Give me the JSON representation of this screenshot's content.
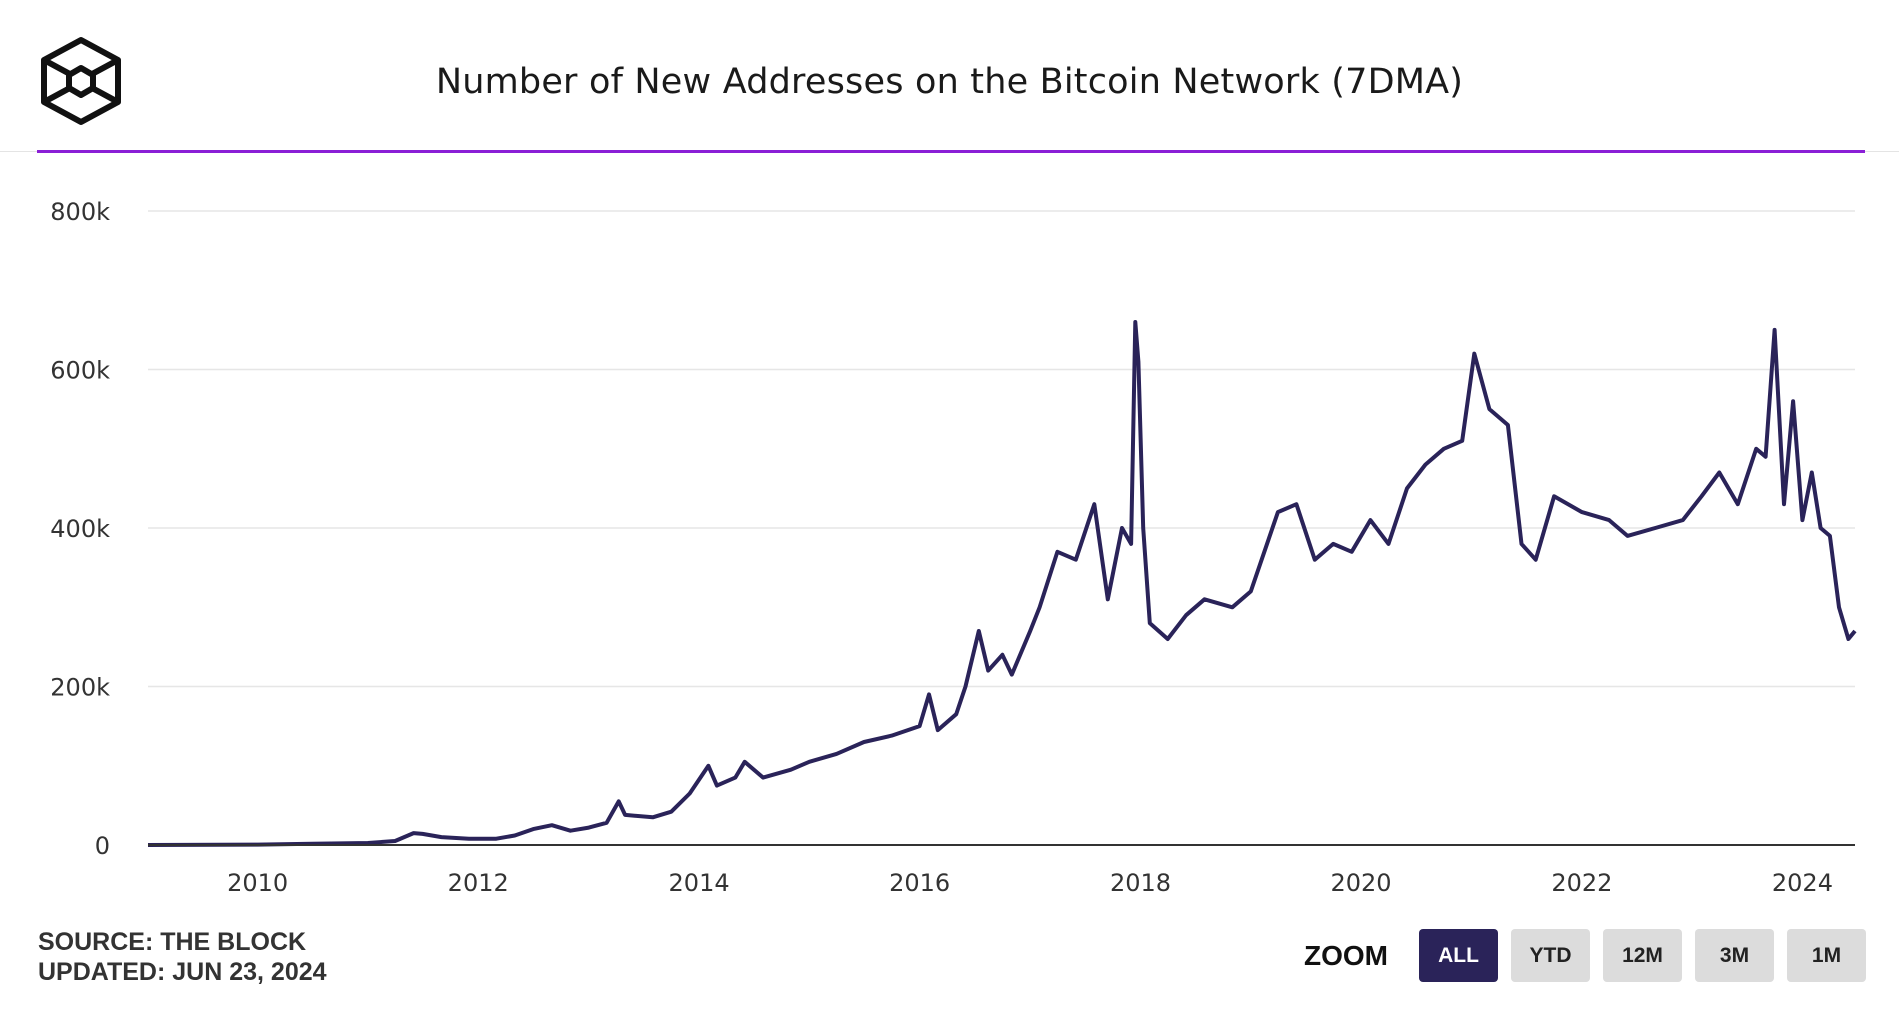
{
  "header": {
    "title": "Number of New Addresses on the Bitcoin Network (7DMA)",
    "logo_icon": "the-block-cube-logo"
  },
  "footer": {
    "source": "SOURCE: THE BLOCK",
    "updated": "UPDATED: JUN 23, 2024"
  },
  "zoom": {
    "label": "ZOOM",
    "buttons": [
      "ALL",
      "YTD",
      "12M",
      "3M",
      "1M"
    ],
    "active": "ALL"
  },
  "colors": {
    "line": "#2a2359",
    "accent": "#8a1fd6",
    "grid": "#e6e6e6",
    "button_active": "#2a2359",
    "button_inactive": "#dcdcdc"
  },
  "chart_data": {
    "type": "line",
    "title": "Number of New Addresses on the Bitcoin Network (7DMA)",
    "xlabel": "",
    "ylabel": "",
    "ylim": [
      0,
      800000
    ],
    "xlim": [
      "2009-01-03",
      "2024-06-23"
    ],
    "yticks": [
      0,
      200000,
      400000,
      600000,
      800000
    ],
    "ytick_labels": [
      "0",
      "200k",
      "400k",
      "600k",
      "800k"
    ],
    "xticks": [
      "2010-01-01",
      "2012-01-01",
      "2014-01-01",
      "2016-01-01",
      "2018-01-01",
      "2020-01-01",
      "2022-01-01",
      "2024-01-01"
    ],
    "xtick_labels": [
      "2010",
      "2012",
      "2014",
      "2016",
      "2018",
      "2020",
      "2022",
      "2024"
    ],
    "grid": true,
    "legend": "none",
    "series": [
      {
        "values": [
          [
            "2009-01-03",
            0
          ],
          [
            "2010-01-01",
            500
          ],
          [
            "2010-07-01",
            1500
          ],
          [
            "2011-01-01",
            2500
          ],
          [
            "2011-04-01",
            5000
          ],
          [
            "2011-06-01",
            15000
          ],
          [
            "2011-07-01",
            14000
          ],
          [
            "2011-09-01",
            10000
          ],
          [
            "2011-12-01",
            8000
          ],
          [
            "2012-03-01",
            8000
          ],
          [
            "2012-05-01",
            12000
          ],
          [
            "2012-07-01",
            20000
          ],
          [
            "2012-09-01",
            25000
          ],
          [
            "2012-11-01",
            18000
          ],
          [
            "2013-01-01",
            22000
          ],
          [
            "2013-03-01",
            28000
          ],
          [
            "2013-04-10",
            55000
          ],
          [
            "2013-05-01",
            38000
          ],
          [
            "2013-08-01",
            35000
          ],
          [
            "2013-10-01",
            42000
          ],
          [
            "2013-12-01",
            65000
          ],
          [
            "2014-02-01",
            100000
          ],
          [
            "2014-03-01",
            75000
          ],
          [
            "2014-05-01",
            85000
          ],
          [
            "2014-06-01",
            105000
          ],
          [
            "2014-08-01",
            85000
          ],
          [
            "2014-11-01",
            95000
          ],
          [
            "2015-01-01",
            105000
          ],
          [
            "2015-04-01",
            115000
          ],
          [
            "2015-07-01",
            130000
          ],
          [
            "2015-10-01",
            138000
          ],
          [
            "2016-01-01",
            150000
          ],
          [
            "2016-02-01",
            190000
          ],
          [
            "2016-03-01",
            145000
          ],
          [
            "2016-05-01",
            165000
          ],
          [
            "2016-06-01",
            200000
          ],
          [
            "2016-07-15",
            270000
          ],
          [
            "2016-08-15",
            220000
          ],
          [
            "2016-10-01",
            240000
          ],
          [
            "2016-11-01",
            215000
          ],
          [
            "2017-01-01",
            270000
          ],
          [
            "2017-02-01",
            300000
          ],
          [
            "2017-04-01",
            370000
          ],
          [
            "2017-06-01",
            360000
          ],
          [
            "2017-08-01",
            430000
          ],
          [
            "2017-09-15",
            310000
          ],
          [
            "2017-11-01",
            400000
          ],
          [
            "2017-12-01",
            380000
          ],
          [
            "2017-12-15",
            660000
          ],
          [
            "2017-12-25",
            610000
          ],
          [
            "2018-01-10",
            400000
          ],
          [
            "2018-02-01",
            280000
          ],
          [
            "2018-04-01",
            260000
          ],
          [
            "2018-06-01",
            290000
          ],
          [
            "2018-08-01",
            310000
          ],
          [
            "2018-11-01",
            300000
          ],
          [
            "2019-01-01",
            320000
          ],
          [
            "2019-04-01",
            420000
          ],
          [
            "2019-06-01",
            430000
          ],
          [
            "2019-08-01",
            360000
          ],
          [
            "2019-10-01",
            380000
          ],
          [
            "2019-12-01",
            370000
          ],
          [
            "2020-02-01",
            410000
          ],
          [
            "2020-04-01",
            380000
          ],
          [
            "2020-06-01",
            450000
          ],
          [
            "2020-08-01",
            480000
          ],
          [
            "2020-10-01",
            500000
          ],
          [
            "2020-12-01",
            510000
          ],
          [
            "2021-01-10",
            620000
          ],
          [
            "2021-03-01",
            550000
          ],
          [
            "2021-05-01",
            530000
          ],
          [
            "2021-06-15",
            380000
          ],
          [
            "2021-08-01",
            360000
          ],
          [
            "2021-10-01",
            440000
          ],
          [
            "2022-01-01",
            420000
          ],
          [
            "2022-04-01",
            410000
          ],
          [
            "2022-06-01",
            390000
          ],
          [
            "2022-09-01",
            400000
          ],
          [
            "2022-12-01",
            410000
          ],
          [
            "2023-02-01",
            440000
          ],
          [
            "2023-04-01",
            470000
          ],
          [
            "2023-06-01",
            430000
          ],
          [
            "2023-08-01",
            500000
          ],
          [
            "2023-09-01",
            490000
          ],
          [
            "2023-10-01",
            650000
          ],
          [
            "2023-11-01",
            430000
          ],
          [
            "2023-12-01",
            560000
          ],
          [
            "2024-01-01",
            410000
          ],
          [
            "2024-02-01",
            470000
          ],
          [
            "2024-03-01",
            400000
          ],
          [
            "2024-04-01",
            390000
          ],
          [
            "2024-05-01",
            300000
          ],
          [
            "2024-06-01",
            260000
          ],
          [
            "2024-06-23",
            270000
          ]
        ]
      }
    ]
  }
}
